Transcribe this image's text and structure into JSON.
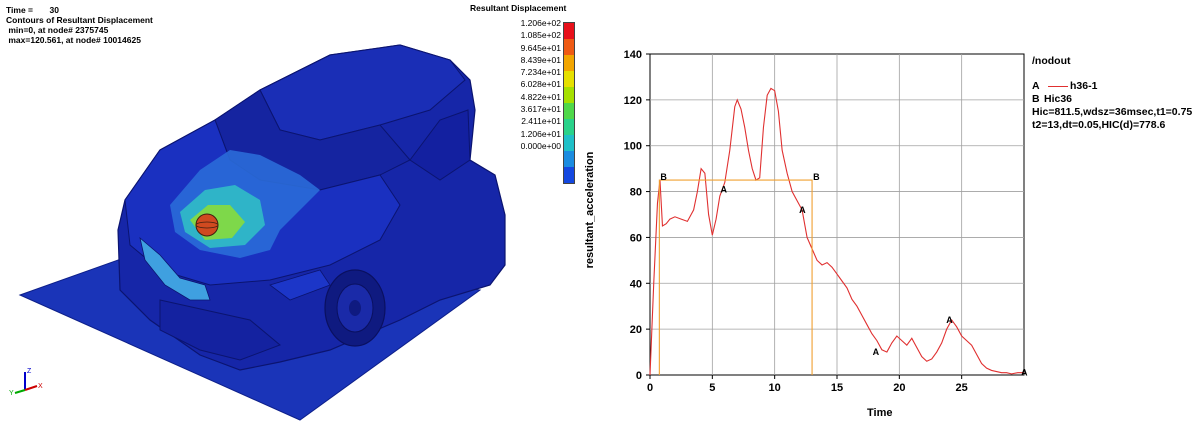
{
  "viewport": {
    "time_label": "Time =",
    "time_value": "30",
    "contours_label": "Contours of Resultant Displacement",
    "min_text": " min=0, at node# 2375745",
    "max_text": " max=120.561, at node# 10014625",
    "legend_title": "Resultant Displacement",
    "legend_values": [
      "1.206e+02",
      "1.085e+02",
      "9.645e+01",
      "8.439e+01",
      "7.234e+01",
      "6.028e+01",
      "4.822e+01",
      "3.617e+01",
      "2.411e+01",
      "1.206e+01",
      "0.000e+00"
    ],
    "legend_colors": [
      "#e8101a",
      "#ef5a14",
      "#f2a500",
      "#e6e000",
      "#a6e000",
      "#4fd84a",
      "#2ad28a",
      "#1fc0c8",
      "#1b8ce0",
      "#1448e0",
      "#0a10c0"
    ],
    "colors": {
      "ground": "#1a34b8",
      "car_body": "#1626a8",
      "car_dark": "#0f1a80",
      "hood_hot": "#3fbfd0",
      "impact": "#7ed84a",
      "impactor": "#d04a20"
    },
    "axis_triad": {
      "x": "X",
      "y": "Y",
      "z": "Z"
    }
  },
  "plot": {
    "header": "/nodout",
    "legend": [
      {
        "key": "A",
        "label": "h36-1",
        "color": "#e03030"
      },
      {
        "key": "B",
        "label": "Hic36",
        "color": "#f0a030"
      }
    ],
    "hic_line1": "Hic=811.5,wdsz=36msec,t1=0.75",
    "hic_line2": "t2=13,dt=0.05,HIC(d)=778.6",
    "xlabel": "Time",
    "ylabel": "resultant_acceleration"
  },
  "chart_data": {
    "type": "line",
    "xlabel": "Time",
    "ylabel": "resultant_acceleration",
    "xlim": [
      0,
      30
    ],
    "ylim": [
      0,
      140
    ],
    "xticks": [
      0,
      5,
      10,
      15,
      20,
      25
    ],
    "yticks": [
      0,
      20,
      40,
      60,
      80,
      100,
      120,
      140
    ],
    "grid": true,
    "legend_position": "right",
    "series": [
      {
        "name": "h36-1",
        "marker_label": "A",
        "color": "#e03030",
        "x": [
          0,
          0.3,
          0.6,
          0.8,
          1.0,
          1.3,
          1.6,
          2.0,
          2.5,
          3.0,
          3.5,
          3.8,
          4.1,
          4.4,
          4.7,
          5.0,
          5.3,
          5.6,
          6.0,
          6.4,
          6.8,
          7.0,
          7.3,
          7.6,
          7.9,
          8.2,
          8.5,
          8.8,
          9.1,
          9.4,
          9.7,
          10.0,
          10.3,
          10.6,
          11.0,
          11.4,
          11.8,
          12.2,
          12.6,
          13.0,
          13.4,
          13.8,
          14.2,
          14.6,
          15.0,
          15.4,
          15.8,
          16.2,
          16.6,
          17.0,
          17.4,
          17.8,
          18.2,
          18.6,
          19.0,
          19.4,
          19.8,
          20.2,
          20.6,
          21.0,
          21.4,
          21.8,
          22.2,
          22.6,
          23.0,
          23.4,
          23.8,
          24.2,
          24.6,
          25.0,
          25.4,
          25.8,
          26.2,
          26.6,
          27.0,
          27.4,
          27.8,
          28.2,
          28.6,
          29.0,
          29.5,
          30.0
        ],
        "y": [
          0,
          40,
          75,
          85,
          65,
          66,
          68,
          69,
          68,
          67,
          72,
          80,
          90,
          88,
          70,
          61,
          68,
          78,
          84,
          98,
          117,
          120,
          116,
          108,
          98,
          90,
          85,
          86,
          108,
          122,
          125,
          124,
          115,
          98,
          88,
          80,
          76,
          72,
          60,
          55,
          50,
          48,
          49,
          47,
          44,
          41,
          38,
          33,
          30,
          26,
          22,
          18,
          15,
          11,
          10,
          14,
          17,
          15,
          13,
          16,
          12,
          8,
          6,
          7,
          10,
          14,
          20,
          24,
          21,
          17,
          15,
          13,
          9,
          5,
          3,
          2,
          1.5,
          1,
          1,
          0.5,
          1,
          1
        ]
      },
      {
        "name": "Hic36",
        "marker_label": "B",
        "color": "#f0a030",
        "x": [
          0.75,
          0.75,
          13,
          13
        ],
        "y": [
          0,
          85,
          85,
          0
        ]
      }
    ]
  }
}
